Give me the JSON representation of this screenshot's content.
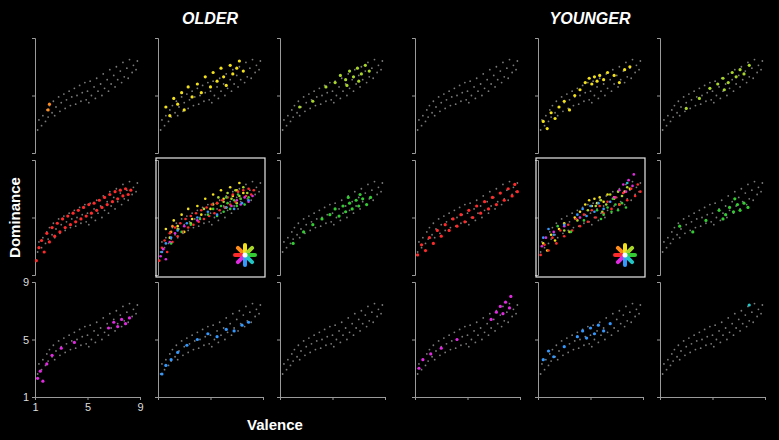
{
  "chart_data": {
    "type": "scatter",
    "xlabel": "Valence",
    "ylabel": "Dominance",
    "xlim": [
      1,
      9
    ],
    "ylim": [
      1,
      9
    ],
    "xticks": [
      1,
      5,
      9
    ],
    "yticks": [
      1,
      5,
      9
    ],
    "background": {
      "color": "#7a7a7a",
      "x": [
        1.2,
        1.3,
        1.5,
        1.6,
        1.8,
        1.9,
        2.0,
        2.1,
        2.3,
        2.4,
        2.5,
        2.6,
        2.8,
        2.9,
        3.0,
        3.2,
        3.3,
        3.4,
        3.6,
        3.7,
        3.8,
        4.0,
        4.1,
        4.2,
        4.4,
        4.5,
        4.6,
        4.8,
        4.9,
        5.0,
        5.1,
        5.2,
        5.3,
        5.5,
        5.6,
        5.7,
        5.8,
        6.0,
        6.1,
        6.2,
        6.3,
        6.5,
        6.6,
        6.7,
        6.8,
        7.0,
        7.1,
        7.2,
        7.3,
        7.5,
        7.6,
        7.7,
        7.8,
        8.0,
        8.1,
        8.2,
        8.4,
        8.5,
        8.7,
        8.8
      ],
      "y": [
        2.6,
        3.3,
        2.9,
        3.6,
        3.2,
        4.0,
        3.5,
        4.3,
        3.8,
        4.6,
        3.6,
        4.2,
        4.9,
        3.9,
        4.5,
        5.1,
        4.1,
        4.7,
        5.3,
        4.3,
        4.9,
        5.5,
        4.4,
        5.0,
        5.7,
        4.6,
        5.2,
        5.9,
        4.7,
        5.3,
        4.5,
        6.0,
        5.0,
        5.6,
        4.8,
        6.2,
        5.3,
        5.8,
        5.0,
        6.5,
        5.5,
        6.1,
        5.3,
        6.8,
        5.8,
        6.4,
        5.6,
        7.0,
        6.1,
        6.7,
        5.9,
        7.3,
        6.3,
        6.9,
        6.2,
        7.5,
        6.6,
        7.1,
        6.8,
        7.4
      ]
    },
    "groups": [
      {
        "title": "OLDER",
        "panels": [
          {
            "series": [
              {
                "color": "#ff8c1a",
                "x": [
                  2.1,
                  2.0
                ],
                "y": [
                  4.4,
                  4.0
                ]
              }
            ]
          },
          {
            "series": [
              {
                "color": "#f2e01a",
                "x": [
                  1.6,
                  1.9,
                  2.2,
                  2.5,
                  2.8,
                  3.0,
                  3.3,
                  3.6,
                  4.0,
                  4.3,
                  4.6,
                  5.0,
                  5.2,
                  5.5,
                  5.8,
                  6.0,
                  6.2,
                  6.5,
                  6.7,
                  7.0,
                  7.2,
                  7.5
                ],
                "y": [
                  4.2,
                  3.6,
                  4.8,
                  4.4,
                  5.2,
                  4.0,
                  5.6,
                  4.9,
                  5.8,
                  5.2,
                  6.3,
                  5.6,
                  6.6,
                  6.0,
                  6.9,
                  6.3,
                  5.7,
                  7.1,
                  6.5,
                  6.9,
                  7.4,
                  6.7
                ]
              }
            ]
          },
          {
            "series": [
              {
                "color": "#a8d62a",
                "x": [
                  2.5,
                  3.5,
                  4.5,
                  5.2,
                  5.6,
                  6.0,
                  6.3,
                  6.6,
                  6.9,
                  7.2,
                  7.5,
                  7.8,
                  6.1,
                  7.0
                ],
                "y": [
                  4.2,
                  4.6,
                  5.6,
                  5.9,
                  6.4,
                  6.1,
                  6.7,
                  6.3,
                  6.9,
                  6.5,
                  7.1,
                  6.7,
                  5.7,
                  6.0
                ]
              }
            ]
          },
          {
            "series": [
              {
                "color": "#ff2a2a",
                "x": [
                  1.1,
                  1.3,
                  1.5,
                  1.7,
                  1.9,
                  2.1,
                  2.3,
                  2.5,
                  2.7,
                  2.9,
                  3.1,
                  3.3,
                  3.5,
                  3.7,
                  3.9,
                  4.1,
                  4.3,
                  4.5,
                  4.7,
                  4.9,
                  5.1,
                  5.3,
                  5.5,
                  5.7,
                  5.9,
                  6.1,
                  6.3,
                  6.5,
                  6.7,
                  6.9,
                  7.1,
                  7.3,
                  7.5,
                  7.7,
                  7.9,
                  8.1,
                  8.3
                ],
                "y": [
                  2.0,
                  2.9,
                  3.4,
                  2.6,
                  3.9,
                  3.3,
                  4.3,
                  3.7,
                  4.6,
                  4.0,
                  4.9,
                  4.3,
                  5.1,
                  4.5,
                  5.3,
                  4.7,
                  5.5,
                  4.9,
                  5.7,
                  5.1,
                  5.9,
                  5.3,
                  6.0,
                  5.5,
                  6.2,
                  5.7,
                  6.4,
                  5.9,
                  6.6,
                  6.1,
                  6.8,
                  6.3,
                  6.9,
                  6.5,
                  7.0,
                  6.6,
                  6.9
                ]
              }
            ]
          },
          {
            "type": "combined"
          },
          {
            "series": [
              {
                "color": "#33cc33",
                "x": [
                  2.0,
                  2.8,
                  3.5,
                  4.2,
                  4.8,
                  5.2,
                  5.5,
                  5.8,
                  6.0,
                  6.3,
                  6.5,
                  6.8,
                  7.0,
                  7.3,
                  7.6,
                  7.9,
                  6.2,
                  7.1
                ],
                "y": [
                  3.2,
                  4.0,
                  4.5,
                  4.9,
                  5.2,
                  5.6,
                  5.1,
                  5.8,
                  5.4,
                  6.0,
                  5.6,
                  6.2,
                  5.8,
                  6.3,
                  5.9,
                  6.4,
                  6.4,
                  6.6
                ]
              }
            ]
          },
          {
            "series": [
              {
                "color": "#e02ae0",
                "x": [
                  1.2,
                  1.4,
                  1.6,
                  1.9,
                  2.3,
                  3.0,
                  4.0,
                  6.6,
                  7.0,
                  7.3,
                  7.6,
                  7.9,
                  8.2
                ],
                "y": [
                  2.3,
                  2.8,
                  2.1,
                  3.3,
                  3.9,
                  4.4,
                  4.8,
                  5.8,
                  6.2,
                  5.9,
                  6.4,
                  6.1,
                  6.5
                ]
              }
            ]
          },
          {
            "series": [
              {
                "color": "#3399ff",
                "x": [
                  1.3,
                  1.6,
                  2.0,
                  2.5,
                  3.2,
                  4.0,
                  4.8,
                  5.5,
                  6.2,
                  6.8,
                  7.4,
                  7.9
                ],
                "y": [
                  2.6,
                  3.2,
                  3.6,
                  4.1,
                  4.6,
                  5.0,
                  5.4,
                  5.2,
                  5.7,
                  5.6,
                  6.0,
                  6.2
                ]
              }
            ]
          },
          {
            "series": [
              {
                "color": "#22c4c4",
                "x": [],
                "y": []
              }
            ]
          }
        ]
      },
      {
        "title": "YOUNGER",
        "panels": [
          {
            "series": [
              {
                "color": "#ff8c1a",
                "x": [],
                "y": []
              }
            ]
          },
          {
            "series": [
              {
                "color": "#f2e01a",
                "x": [
                  1.4,
                  1.7,
                  2.0,
                  2.3,
                  2.6,
                  3.0,
                  3.4,
                  3.8,
                  4.2,
                  4.6,
                  4.9,
                  5.1,
                  5.3,
                  5.5,
                  5.7,
                  6.0,
                  6.3,
                  6.8,
                  7.2,
                  7.6,
                  8.0
                ],
                "y": [
                  3.2,
                  2.7,
                  3.8,
                  3.4,
                  4.2,
                  4.6,
                  4.0,
                  5.0,
                  5.4,
                  5.9,
                  6.2,
                  5.8,
                  6.3,
                  6.0,
                  6.4,
                  6.1,
                  6.6,
                  6.4,
                  5.9,
                  6.8,
                  7.0
                ]
              }
            ]
          },
          {
            "series": [
              {
                "color": "#a8d62a",
                "x": [
                  3.0,
                  4.0,
                  4.8,
                  5.4,
                  5.8,
                  6.2,
                  6.5,
                  6.8,
                  7.1,
                  7.4,
                  7.8,
                  5.9
                ],
                "y": [
                  4.1,
                  4.8,
                  5.5,
                  5.8,
                  6.2,
                  5.9,
                  6.6,
                  6.3,
                  6.8,
                  6.5,
                  7.1,
                  5.4
                ]
              }
            ]
          },
          {
            "series": [
              {
                "color": "#ff2a2a",
                "x": [
                  1.2,
                  1.5,
                  1.8,
                  2.1,
                  2.4,
                  2.7,
                  3.0,
                  3.3,
                  3.6,
                  3.9,
                  4.2,
                  4.5,
                  4.8,
                  5.1,
                  5.4,
                  5.7,
                  6.0,
                  6.3,
                  6.6,
                  6.9,
                  7.2,
                  7.5,
                  7.8,
                  8.1,
                  8.4,
                  8.6,
                  8.8
                ],
                "y": [
                  2.4,
                  3.1,
                  2.7,
                  3.6,
                  3.2,
                  4.1,
                  3.7,
                  4.5,
                  4.1,
                  4.9,
                  4.4,
                  5.2,
                  4.7,
                  5.5,
                  5.0,
                  5.8,
                  5.3,
                  6.1,
                  5.6,
                  6.4,
                  5.9,
                  6.7,
                  6.2,
                  7.0,
                  6.5,
                  7.3,
                  6.8
                ]
              }
            ]
          },
          {
            "type": "combined"
          },
          {
            "series": [
              {
                "color": "#33cc33",
                "x": [
                  2.5,
                  3.5,
                  4.5,
                  5.5,
                  6.0,
                  6.3,
                  6.6,
                  6.9,
                  7.1,
                  7.4,
                  7.7,
                  6.7,
                  5.8
                ],
                "y": [
                  4.4,
                  4.0,
                  4.8,
                  5.5,
                  5.2,
                  5.7,
                  5.4,
                  5.9,
                  5.5,
                  6.0,
                  5.7,
                  6.3,
                  4.9
                ]
              }
            ]
          },
          {
            "series": [
              {
                "color": "#e02ae0",
                "x": [
                  1.3,
                  1.6,
                  2.2,
                  3.0,
                  4.2,
                  6.8,
                  7.2,
                  7.5,
                  7.7,
                  7.9,
                  8.2,
                  8.3
                ],
                "y": [
                  3.0,
                  3.6,
                  4.0,
                  4.4,
                  5.0,
                  6.4,
                  6.9,
                  7.3,
                  6.8,
                  7.6,
                  7.2,
                  8.0
                ]
              }
            ]
          },
          {
            "series": [
              {
                "color": "#3399ff",
                "x": [
                  1.4,
                  1.8,
                  2.2,
                  3.0,
                  4.0,
                  4.4,
                  4.7,
                  5.0,
                  5.3,
                  5.6,
                  6.0,
                  6.5
                ],
                "y": [
                  3.6,
                  4.2,
                  3.8,
                  4.5,
                  5.2,
                  5.6,
                  5.1,
                  5.8,
                  5.4,
                  6.0,
                  5.6,
                  6.1
                ]
              }
            ]
          },
          {
            "series": [
              {
                "color": "#22c4c4",
                "x": [
                  7.8
                ],
                "y": [
                  7.4
                ]
              }
            ]
          }
        ]
      }
    ]
  }
}
